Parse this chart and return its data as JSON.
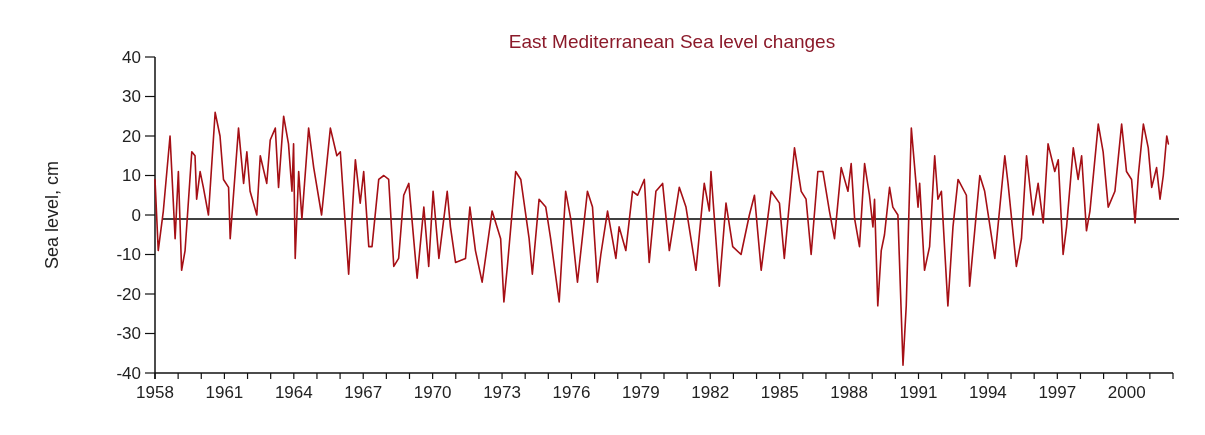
{
  "chart_data": {
    "type": "line",
    "title": "East Mediterranean Sea level changes",
    "ylabel": "Sea level, cm",
    "xlim": [
      1958,
      2002
    ],
    "xticks": [
      1958,
      {
        "value": 1959,
        "label": null
      },
      {
        "value": 1960,
        "label": null
      },
      1961,
      {
        "value": 1962,
        "label": null
      },
      {
        "value": 1963,
        "label": null
      },
      1964,
      {
        "value": 1965,
        "label": null
      },
      {
        "value": 1966,
        "label": null
      },
      1967,
      {
        "value": 1968,
        "label": null
      },
      {
        "value": 1969,
        "label": null
      },
      1970,
      {
        "value": 1971,
        "label": null
      },
      {
        "value": 1972,
        "label": null
      },
      1973,
      {
        "value": 1974,
        "label": null
      },
      {
        "value": 1975,
        "label": null
      },
      1976,
      {
        "value": 1977,
        "label": null
      },
      {
        "value": 1978,
        "label": null
      },
      1979,
      {
        "value": 1980,
        "label": null
      },
      {
        "value": 1981,
        "label": null
      },
      1982,
      {
        "value": 1983,
        "label": null
      },
      {
        "value": 1984,
        "label": null
      },
      1985,
      {
        "value": 1986,
        "label": null
      },
      {
        "value": 1987,
        "label": null
      },
      1988,
      {
        "value": 1989,
        "label": null
      },
      {
        "value": 1990,
        "label": null
      },
      1991,
      {
        "value": 1992,
        "label": null
      },
      {
        "value": 1993,
        "label": null
      },
      1994,
      {
        "value": 1995,
        "label": null
      },
      {
        "value": 1996,
        "label": null
      },
      1997,
      {
        "value": 1998,
        "label": null
      },
      {
        "value": 1999,
        "label": null
      },
      2000,
      {
        "value": 2001,
        "label": null
      },
      {
        "value": 2002,
        "label": null
      }
    ],
    "ylim": [
      -40,
      40
    ],
    "yticks": [
      -40,
      -30,
      -20,
      -10,
      0,
      10,
      20,
      30,
      40
    ],
    "grid": false,
    "marker": "none",
    "line_style": "solid",
    "ref_lines": [
      {
        "axis": "y",
        "value": -1,
        "color": "#000000"
      }
    ],
    "series": [
      {
        "color": "#a50f15",
        "x": [
          1958.0,
          1958.14,
          1958.36,
          1958.65,
          1958.87,
          1959.01,
          1959.15,
          1959.3,
          1959.59,
          1959.73,
          1959.8,
          1959.95,
          1960.09,
          1960.31,
          1960.6,
          1960.81,
          1960.96,
          1961.18,
          1961.25,
          1961.61,
          1961.83,
          1961.97,
          1962.11,
          1962.4,
          1962.55,
          1962.83,
          1962.98,
          1963.2,
          1963.34,
          1963.56,
          1963.77,
          1963.92,
          1963.99,
          1964.06,
          1964.21,
          1964.35,
          1964.64,
          1964.86,
          1965.2,
          1965.58,
          1965.86,
          1966.01,
          1966.37,
          1966.66,
          1966.87,
          1967.02,
          1967.24,
          1967.38,
          1967.67,
          1967.89,
          1968.1,
          1968.32,
          1968.53,
          1968.75,
          1968.97,
          1969.33,
          1969.62,
          1969.83,
          1970.02,
          1970.27,
          1970.63,
          1970.77,
          1970.99,
          1971.42,
          1971.61,
          1971.85,
          1972.14,
          1972.57,
          1972.94,
          1973.08,
          1973.23,
          1973.59,
          1973.81,
          1974.17,
          1974.31,
          1974.6,
          1974.89,
          1975.1,
          1975.47,
          1975.75,
          1975.97,
          1976.26,
          1976.69,
          1976.91,
          1977.12,
          1977.27,
          1977.56,
          1977.92,
          1978.06,
          1978.35,
          1978.64,
          1978.86,
          1979.15,
          1979.36,
          1979.65,
          1979.94,
          1980.23,
          1980.66,
          1980.95,
          1981.38,
          1981.74,
          1981.96,
          1982.03,
          1982.39,
          1982.68,
          1982.97,
          1983.33,
          1983.69,
          1983.91,
          1984.2,
          1984.63,
          1984.99,
          1985.2,
          1985.64,
          1985.93,
          1986.14,
          1986.36,
          1986.65,
          1986.87,
          1987.15,
          1987.37,
          1987.66,
          1987.95,
          1988.09,
          1988.24,
          1988.45,
          1988.67,
          1988.88,
          1989.03,
          1989.1,
          1989.24,
          1989.39,
          1989.53,
          1989.75,
          1989.89,
          1990.11,
          1990.33,
          1990.47,
          1990.69,
          1990.98,
          1991.05,
          1991.26,
          1991.48,
          1991.7,
          1991.84,
          1991.99,
          1992.27,
          1992.49,
          1992.71,
          1993.07,
          1993.21,
          1993.65,
          1993.86,
          1994.3,
          1994.73,
          1994.87,
          1995.23,
          1995.45,
          1995.67,
          1995.95,
          1996.17,
          1996.39,
          1996.6,
          1996.89,
          1997.04,
          1997.25,
          1997.4,
          1997.69,
          1997.9,
          1998.05,
          1998.26,
          1998.41,
          1998.77,
          1998.98,
          1999.2,
          1999.49,
          1999.78,
          1999.99,
          2000.21,
          2000.36,
          2000.5,
          2000.72,
          2000.93,
          2001.08,
          2001.29,
          2001.44,
          2001.58,
          2001.73,
          2001.8
        ],
        "values": [
          9,
          -9,
          1,
          20,
          -6,
          11,
          -14,
          -9,
          16,
          15,
          4,
          11,
          7,
          0,
          26,
          20,
          9,
          7,
          -6,
          22,
          8,
          16,
          6,
          0,
          15,
          8,
          19,
          22,
          7,
          25,
          18,
          6,
          18,
          -11,
          11,
          -1,
          22,
          12,
          0,
          22,
          15,
          16,
          -15,
          14,
          3,
          11,
          -8,
          -8,
          9,
          10,
          9,
          -13,
          -11,
          5,
          8,
          -16,
          2,
          -13,
          6,
          -11,
          6,
          -3,
          -12,
          -11,
          2,
          -9,
          -17,
          1,
          -6,
          -22,
          -13,
          11,
          9,
          -6,
          -15,
          4,
          2,
          -6,
          -22,
          6,
          -1,
          -17,
          6,
          2,
          -17,
          -10,
          1,
          -11,
          -3,
          -9,
          6,
          5,
          9,
          -12,
          6,
          8,
          -9,
          7,
          2,
          -14,
          8,
          1,
          11,
          -18,
          3,
          -8,
          -10,
          0,
          5,
          -14,
          6,
          3,
          -11,
          17,
          6,
          4,
          -10,
          11,
          11,
          1,
          -6,
          12,
          6,
          13,
          -1,
          -8,
          13,
          5,
          -3,
          4,
          -23,
          -9,
          -5,
          7,
          2,
          0,
          -38,
          -23,
          22,
          2,
          8,
          -14,
          -8,
          15,
          4,
          6,
          -23,
          -3,
          9,
          5,
          -18,
          10,
          6,
          -11,
          15,
          8,
          -13,
          -6,
          15,
          0,
          8,
          -2,
          18,
          11,
          14,
          -10,
          -3,
          17,
          9,
          15,
          -4,
          1,
          23,
          16,
          2,
          6,
          23,
          11,
          9,
          -2,
          10,
          23,
          17,
          7,
          12,
          4,
          10,
          20,
          18
        ]
      }
    ]
  }
}
